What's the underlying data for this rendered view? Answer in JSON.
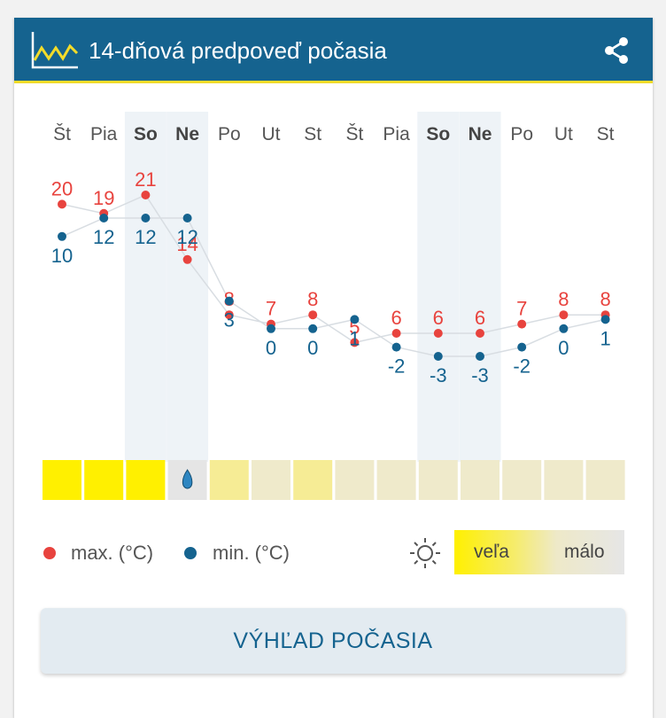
{
  "header": {
    "title": "14-dňová predpoveď počasia"
  },
  "days": [
    {
      "label": "Št",
      "weekend": false,
      "max": 20,
      "min": 10,
      "sun": "high",
      "rain": false
    },
    {
      "label": "Pia",
      "weekend": false,
      "max": 19,
      "min": 12,
      "sun": "high",
      "rain": false
    },
    {
      "label": "So",
      "weekend": true,
      "max": 21,
      "min": 12,
      "sun": "high",
      "rain": false
    },
    {
      "label": "Ne",
      "weekend": true,
      "max": 14,
      "min": 12,
      "sun": "none",
      "rain": true
    },
    {
      "label": "Po",
      "weekend": false,
      "max": 8,
      "min": 3,
      "sun": "medium",
      "rain": false
    },
    {
      "label": "Ut",
      "weekend": false,
      "max": 7,
      "min": 0,
      "sun": "low",
      "rain": false
    },
    {
      "label": "St",
      "weekend": false,
      "max": 8,
      "min": 0,
      "sun": "medium",
      "rain": false
    },
    {
      "label": "Št",
      "weekend": false,
      "max": 5,
      "min": 1,
      "sun": "low",
      "rain": false
    },
    {
      "label": "Pia",
      "weekend": false,
      "max": 6,
      "min": -2,
      "sun": "low",
      "rain": false
    },
    {
      "label": "So",
      "weekend": true,
      "max": 6,
      "min": -3,
      "sun": "low",
      "rain": false
    },
    {
      "label": "Ne",
      "weekend": true,
      "max": 6,
      "min": -3,
      "sun": "low",
      "rain": false
    },
    {
      "label": "Po",
      "weekend": false,
      "max": 7,
      "min": -2,
      "sun": "low",
      "rain": false
    },
    {
      "label": "Ut",
      "weekend": false,
      "max": 8,
      "min": 0,
      "sun": "low",
      "rain": false
    },
    {
      "label": "St",
      "weekend": false,
      "max": 8,
      "min": 1,
      "sun": "low",
      "rain": false
    }
  ],
  "legend": {
    "max_label": "max. (°C)",
    "min_label": "min. (°C)",
    "sun_high_label": "veľa",
    "sun_low_label": "málo"
  },
  "button": {
    "label": "VÝHĽAD POČASIA"
  },
  "colors": {
    "header": "#15638f",
    "max": "#e8433e",
    "min": "#15638f",
    "sun_high": "#fff000",
    "sun_medium": "#f6ec95",
    "sun_low": "#efeacb",
    "weekend_band": "#eef3f7"
  }
}
